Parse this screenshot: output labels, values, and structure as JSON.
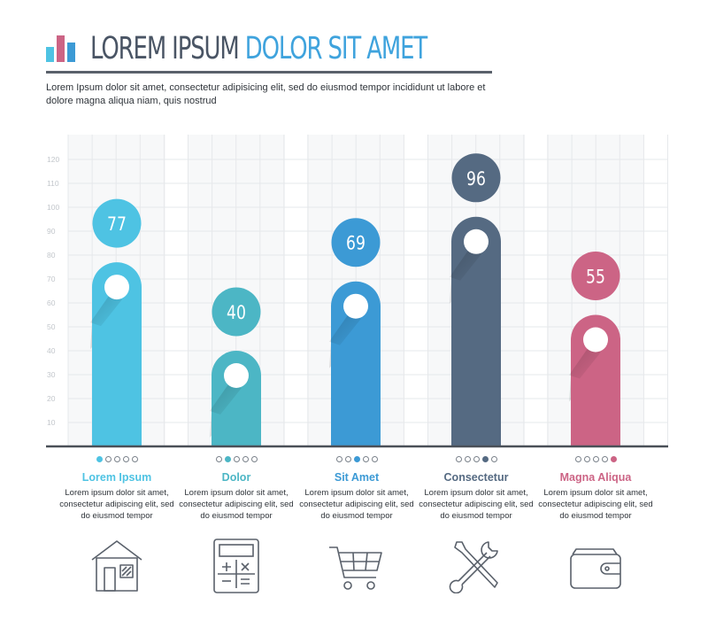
{
  "header": {
    "title_part1": "LOREM IPSUM",
    "title_part2": "DOLOR SIT AMET",
    "intro": "Lorem Ipsum dolor sit amet, consectetur adipisicing elit, sed do eiusmod tempor incididunt ut labore et dolore magna aliqua niam, quis nostrud"
  },
  "colors": {
    "cyan": "#4ec3e3",
    "teal": "#4cb6c5",
    "blue": "#3c9ad5",
    "slate": "#556a82",
    "pink": "#cc6485",
    "title_dark": "#4a5565",
    "title_blue": "#3fa3dd"
  },
  "chart_data": {
    "type": "bar",
    "categories": [
      "Lorem Ipsum",
      "Dolor",
      "Sit Amet",
      "Consectetur",
      "Magna Aliqua"
    ],
    "values": [
      77,
      40,
      69,
      96,
      55
    ],
    "data_labels": [
      "77",
      "40",
      "69",
      "96",
      "55"
    ],
    "ylim": [
      0,
      120
    ],
    "yticks": [
      10,
      20,
      30,
      40,
      50,
      60,
      70,
      80,
      90,
      100,
      110,
      120
    ],
    "ytick_labels": [
      "10",
      "20",
      "30",
      "40",
      "50",
      "60",
      "70",
      "80",
      "90",
      "100",
      "110",
      "120"
    ],
    "grid": true,
    "bar_colors": [
      "#4ec3e3",
      "#4cb6c5",
      "#3c9ad5",
      "#556a82",
      "#cc6485"
    ]
  },
  "categories": [
    {
      "name": "Lorem Ipsum",
      "desc": "Lorem ipsum dolor sit amet, consectetur adipiscing elit, sed do eiusmod tempor",
      "icon": "house-icon",
      "color": "#4ec3e3",
      "active_dot": 1
    },
    {
      "name": "Dolor",
      "desc": "Lorem ipsum dolor sit amet, consectetur adipiscing elit, sed do eiusmod tempor",
      "icon": "calculator-icon",
      "color": "#4cb6c5",
      "active_dot": 2
    },
    {
      "name": "Sit Amet",
      "desc": "Lorem ipsum dolor sit amet, consectetur adipiscing elit, sed do eiusmod tempor",
      "icon": "shopping-cart-icon",
      "color": "#3c9ad5",
      "active_dot": 3
    },
    {
      "name": "Consectetur",
      "desc": "Lorem ipsum dolor sit amet, consectetur adipiscing elit, sed do eiusmod tempor",
      "icon": "tools-icon",
      "color": "#556a82",
      "active_dot": 4
    },
    {
      "name": "Magna Aliqua",
      "desc": "Lorem ipsum dolor sit amet, consectetur adipiscing elit, sed do eiusmod tempor",
      "icon": "wallet-icon",
      "color": "#cc6485",
      "active_dot": 5
    }
  ]
}
